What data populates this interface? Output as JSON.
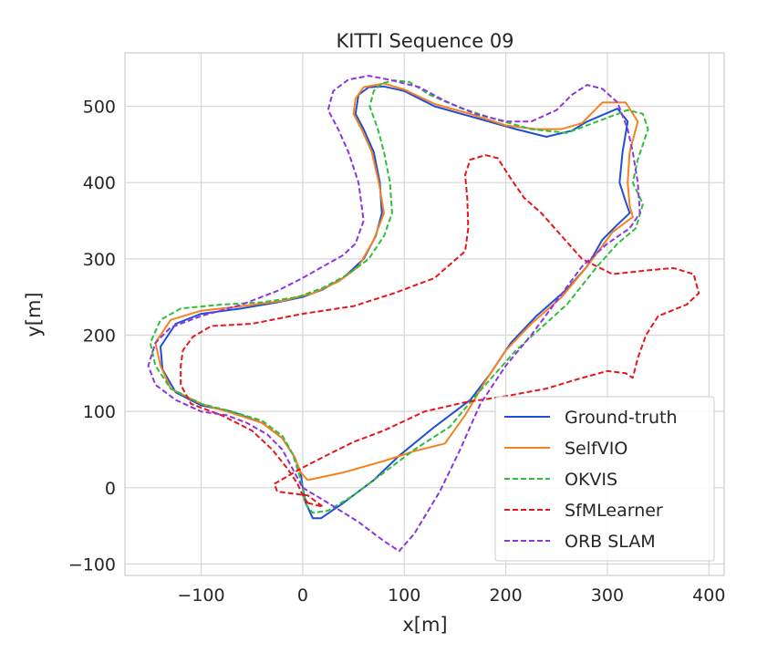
{
  "chart_data": {
    "type": "line",
    "title": "KITTI Sequence 09",
    "xlabel": "x[m]",
    "ylabel": "y[m]",
    "xlim": [
      -175,
      415
    ],
    "ylim": [
      -115,
      570
    ],
    "xticks": [
      -100,
      0,
      100,
      200,
      300,
      400
    ],
    "yticks": [
      -100,
      0,
      100,
      200,
      300,
      400,
      500
    ],
    "grid": true,
    "legend_position": "lower-right",
    "series": [
      {
        "name": "Ground-truth",
        "color": "#1f4fd6",
        "style": "solid",
        "points": [
          [
            0,
            0
          ],
          [
            3,
            -20
          ],
          [
            10,
            -40
          ],
          [
            18,
            -40
          ],
          [
            40,
            -20
          ],
          [
            70,
            10
          ],
          [
            95,
            42
          ],
          [
            130,
            80
          ],
          [
            165,
            115
          ],
          [
            185,
            150
          ],
          [
            205,
            190
          ],
          [
            230,
            225
          ],
          [
            260,
            260
          ],
          [
            280,
            290
          ],
          [
            295,
            325
          ],
          [
            310,
            345
          ],
          [
            322,
            360
          ],
          [
            318,
            375
          ],
          [
            312,
            400
          ],
          [
            315,
            440
          ],
          [
            320,
            480
          ],
          [
            310,
            497
          ],
          [
            280,
            480
          ],
          [
            265,
            468
          ],
          [
            240,
            460
          ],
          [
            210,
            470
          ],
          [
            170,
            485
          ],
          [
            130,
            500
          ],
          [
            100,
            520
          ],
          [
            80,
            526
          ],
          [
            65,
            525
          ],
          [
            55,
            515
          ],
          [
            52,
            490
          ],
          [
            60,
            470
          ],
          [
            70,
            440
          ],
          [
            76,
            400
          ],
          [
            78,
            360
          ],
          [
            72,
            330
          ],
          [
            60,
            300
          ],
          [
            40,
            275
          ],
          [
            20,
            260
          ],
          [
            0,
            250
          ],
          [
            -25,
            243
          ],
          [
            -60,
            235
          ],
          [
            -100,
            228
          ],
          [
            -125,
            215
          ],
          [
            -140,
            185
          ],
          [
            -138,
            155
          ],
          [
            -125,
            125
          ],
          [
            -100,
            108
          ],
          [
            -70,
            100
          ],
          [
            -40,
            85
          ],
          [
            -20,
            65
          ],
          [
            -8,
            40
          ],
          [
            -2,
            20
          ],
          [
            0,
            0
          ]
        ]
      },
      {
        "name": "SelfVIO",
        "color": "#f5821f",
        "style": "solid",
        "points": [
          [
            5,
            10
          ],
          [
            40,
            20
          ],
          [
            80,
            35
          ],
          [
            110,
            48
          ],
          [
            140,
            58
          ],
          [
            160,
            95
          ],
          [
            180,
            140
          ],
          [
            200,
            180
          ],
          [
            225,
            215
          ],
          [
            255,
            250
          ],
          [
            280,
            290
          ],
          [
            305,
            335
          ],
          [
            325,
            355
          ],
          [
            322,
            370
          ],
          [
            320,
            400
          ],
          [
            322,
            440
          ],
          [
            330,
            480
          ],
          [
            318,
            505
          ],
          [
            295,
            505
          ],
          [
            275,
            478
          ],
          [
            255,
            470
          ],
          [
            230,
            470
          ],
          [
            200,
            475
          ],
          [
            165,
            490
          ],
          [
            130,
            503
          ],
          [
            100,
            522
          ],
          [
            80,
            530
          ],
          [
            60,
            525
          ],
          [
            52,
            510
          ],
          [
            50,
            490
          ],
          [
            58,
            470
          ],
          [
            68,
            440
          ],
          [
            75,
            400
          ],
          [
            80,
            360
          ],
          [
            70,
            325
          ],
          [
            55,
            290
          ],
          [
            35,
            270
          ],
          [
            10,
            255
          ],
          [
            -20,
            245
          ],
          [
            -60,
            238
          ],
          [
            -100,
            232
          ],
          [
            -130,
            220
          ],
          [
            -145,
            190
          ],
          [
            -140,
            160
          ],
          [
            -130,
            130
          ],
          [
            -100,
            110
          ],
          [
            -70,
            98
          ],
          [
            -40,
            85
          ],
          [
            -20,
            65
          ],
          [
            -8,
            40
          ],
          [
            -2,
            20
          ],
          [
            5,
            10
          ]
        ]
      },
      {
        "name": "OKVIS",
        "color": "#2fbf3a",
        "style": "dashed",
        "points": [
          [
            0,
            0
          ],
          [
            2,
            -20
          ],
          [
            10,
            -33
          ],
          [
            25,
            -30
          ],
          [
            50,
            -10
          ],
          [
            80,
            20
          ],
          [
            110,
            50
          ],
          [
            145,
            80
          ],
          [
            170,
            120
          ],
          [
            190,
            150
          ],
          [
            210,
            180
          ],
          [
            235,
            210
          ],
          [
            260,
            240
          ],
          [
            290,
            290
          ],
          [
            310,
            320
          ],
          [
            328,
            340
          ],
          [
            335,
            372
          ],
          [
            325,
            400
          ],
          [
            330,
            430
          ],
          [
            340,
            470
          ],
          [
            335,
            490
          ],
          [
            320,
            495
          ],
          [
            290,
            480
          ],
          [
            260,
            465
          ],
          [
            225,
            470
          ],
          [
            190,
            483
          ],
          [
            155,
            498
          ],
          [
            125,
            515
          ],
          [
            105,
            532
          ],
          [
            90,
            534
          ],
          [
            78,
            530
          ],
          [
            70,
            520
          ],
          [
            66,
            500
          ],
          [
            74,
            470
          ],
          [
            80,
            440
          ],
          [
            86,
            400
          ],
          [
            88,
            360
          ],
          [
            80,
            330
          ],
          [
            65,
            300
          ],
          [
            45,
            280
          ],
          [
            20,
            262
          ],
          [
            -5,
            250
          ],
          [
            -40,
            243
          ],
          [
            -80,
            240
          ],
          [
            -120,
            235
          ],
          [
            -140,
            220
          ],
          [
            -150,
            190
          ],
          [
            -145,
            160
          ],
          [
            -130,
            130
          ],
          [
            -100,
            110
          ],
          [
            -70,
            100
          ],
          [
            -40,
            88
          ],
          [
            -20,
            68
          ],
          [
            -10,
            45
          ],
          [
            -4,
            20
          ],
          [
            0,
            0
          ]
        ]
      },
      {
        "name": "SfMLearner",
        "color": "#e3171c",
        "style": "dashed",
        "points": [
          [
            5,
            -20
          ],
          [
            20,
            -25
          ],
          [
            5,
            -10
          ],
          [
            -25,
            -5
          ],
          [
            -28,
            5
          ],
          [
            -15,
            15
          ],
          [
            -2,
            25
          ],
          [
            20,
            40
          ],
          [
            50,
            60
          ],
          [
            80,
            75
          ],
          [
            120,
            100
          ],
          [
            160,
            112
          ],
          [
            200,
            120
          ],
          [
            240,
            130
          ],
          [
            270,
            142
          ],
          [
            300,
            153
          ],
          [
            318,
            150
          ],
          [
            325,
            144
          ],
          [
            330,
            170
          ],
          [
            338,
            200
          ],
          [
            350,
            225
          ],
          [
            378,
            240
          ],
          [
            390,
            255
          ],
          [
            385,
            280
          ],
          [
            365,
            288
          ],
          [
            340,
            285
          ],
          [
            305,
            280
          ],
          [
            275,
            300
          ],
          [
            255,
            330
          ],
          [
            235,
            360
          ],
          [
            218,
            380
          ],
          [
            205,
            405
          ],
          [
            192,
            432
          ],
          [
            180,
            436
          ],
          [
            165,
            430
          ],
          [
            160,
            410
          ],
          [
            162,
            380
          ],
          [
            163,
            340
          ],
          [
            160,
            310
          ],
          [
            147,
            295
          ],
          [
            130,
            275
          ],
          [
            110,
            265
          ],
          [
            90,
            255
          ],
          [
            50,
            238
          ],
          [
            0,
            228
          ],
          [
            -50,
            215
          ],
          [
            -90,
            212
          ],
          [
            -108,
            198
          ],
          [
            -118,
            180
          ],
          [
            -120,
            160
          ],
          [
            -120,
            135
          ],
          [
            -110,
            110
          ],
          [
            -80,
            95
          ],
          [
            -50,
            75
          ],
          [
            -30,
            50
          ],
          [
            -15,
            25
          ],
          [
            -5,
            5
          ],
          [
            0,
            -10
          ],
          [
            5,
            -20
          ]
        ]
      },
      {
        "name": "ORB SLAM",
        "color": "#8c35e0",
        "style": "dashed",
        "points": [
          [
            0,
            0
          ],
          [
            25,
            -20
          ],
          [
            55,
            -45
          ],
          [
            80,
            -70
          ],
          [
            95,
            -83
          ],
          [
            110,
            -60
          ],
          [
            135,
            -5
          ],
          [
            155,
            50
          ],
          [
            175,
            110
          ],
          [
            200,
            160
          ],
          [
            225,
            200
          ],
          [
            250,
            245
          ],
          [
            275,
            290
          ],
          [
            300,
            320
          ],
          [
            322,
            340
          ],
          [
            332,
            360
          ],
          [
            330,
            400
          ],
          [
            325,
            440
          ],
          [
            320,
            470
          ],
          [
            310,
            505
          ],
          [
            295,
            523
          ],
          [
            280,
            528
          ],
          [
            265,
            515
          ],
          [
            250,
            495
          ],
          [
            225,
            480
          ],
          [
            200,
            480
          ],
          [
            170,
            490
          ],
          [
            140,
            507
          ],
          [
            115,
            525
          ],
          [
            85,
            535
          ],
          [
            65,
            540
          ],
          [
            45,
            535
          ],
          [
            30,
            520
          ],
          [
            25,
            495
          ],
          [
            35,
            470
          ],
          [
            45,
            440
          ],
          [
            55,
            400
          ],
          [
            60,
            350
          ],
          [
            52,
            320
          ],
          [
            40,
            305
          ],
          [
            20,
            290
          ],
          [
            0,
            275
          ],
          [
            -25,
            258
          ],
          [
            -60,
            240
          ],
          [
            -100,
            225
          ],
          [
            -130,
            210
          ],
          [
            -145,
            190
          ],
          [
            -152,
            160
          ],
          [
            -145,
            135
          ],
          [
            -125,
            115
          ],
          [
            -100,
            100
          ],
          [
            -75,
            95
          ],
          [
            -55,
            85
          ],
          [
            -35,
            70
          ],
          [
            -20,
            50
          ],
          [
            -10,
            25
          ],
          [
            0,
            0
          ]
        ]
      }
    ]
  }
}
